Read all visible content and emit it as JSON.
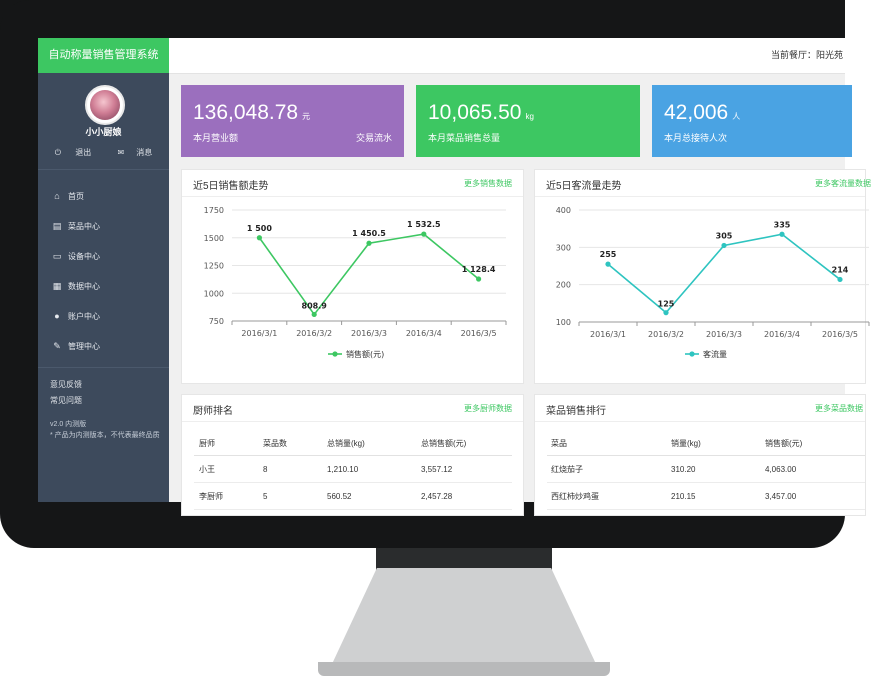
{
  "header": {
    "brand": "自动称量销售管理系统",
    "restaurant": "当前餐厅：阳光苑"
  },
  "sidebar": {
    "username": "小小厨娘",
    "logout": "退出",
    "messages": "消息",
    "nav": [
      {
        "label": "首页",
        "icon": "home-icon"
      },
      {
        "label": "菜品中心",
        "icon": "document-icon"
      },
      {
        "label": "设备中心",
        "icon": "monitor-icon"
      },
      {
        "label": "数据中心",
        "icon": "database-icon"
      },
      {
        "label": "账户中心",
        "icon": "users-icon"
      },
      {
        "label": "管理中心",
        "icon": "wrench-icon"
      }
    ],
    "links": [
      "意见反馈",
      "常见问题"
    ],
    "version": "v2.0 内测版",
    "note": "* 产品为内测版本，不代表最终品质"
  },
  "stats": [
    {
      "value": "136,048.78",
      "unit": "元",
      "label": "本月营业额",
      "link": "交易流水",
      "color": "#9b6fbe"
    },
    {
      "value": "10,065.50",
      "unit": "kg",
      "label": "本月菜品销售总量",
      "color": "#3dc762"
    },
    {
      "value": "42,006",
      "unit": "人",
      "label": "本月总接待人次",
      "color": "#4aa3e3"
    }
  ],
  "sales_panel": {
    "title": "近5日销售额走势",
    "more": "更多销售数据"
  },
  "traffic_panel": {
    "title": "近5日客流量走势",
    "more": "更多客流量数据"
  },
  "chef_panel": {
    "title": "厨师排名",
    "more": "更多厨师数据",
    "columns": [
      "厨师",
      "菜品数",
      "总销量(kg)",
      "总销售额(元)"
    ],
    "rows": [
      [
        "小王",
        "8",
        "1,210.10",
        "3,557.12"
      ],
      [
        "李厨师",
        "5",
        "560.52",
        "2,457.28"
      ]
    ]
  },
  "dish_panel": {
    "title": "菜品销售排行",
    "more": "更多菜品数据",
    "columns": [
      "菜品",
      "销量(kg)",
      "销售额(元)"
    ],
    "rows": [
      [
        "红烧茄子",
        "310.20",
        "4,063.00"
      ],
      [
        "西红柿炒鸡蛋",
        "210.15",
        "3,457.00"
      ]
    ]
  },
  "colors": {
    "accent": "#3dc762",
    "sidebar": "#3d4a5c",
    "teal": "#2ec4c0"
  },
  "chart_data": [
    {
      "type": "line",
      "x": [
        "2016/3/1",
        "2016/3/2",
        "2016/3/3",
        "2016/3/4",
        "2016/3/5"
      ],
      "series": [
        {
          "name": "销售额(元)",
          "values": [
            1500,
            808.9,
            1450.5,
            1532.5,
            1128.4
          ],
          "labels": [
            "1 500",
            "808.9",
            "1 450.5",
            "1 532.5",
            "1 128.4"
          ],
          "color": "#3dc762"
        }
      ],
      "yticks": [
        "750",
        "1000",
        "1250",
        "1500",
        "1750"
      ],
      "ylim": [
        750,
        1750
      ],
      "legend": "bottom"
    },
    {
      "type": "line",
      "x": [
        "2016/3/1",
        "2016/3/2",
        "2016/3/3",
        "2016/3/4",
        "2016/3/5"
      ],
      "series": [
        {
          "name": "客流量",
          "values": [
            255,
            125,
            305,
            335,
            214
          ],
          "labels": [
            "255",
            "125",
            "305",
            "335",
            "214"
          ],
          "color": "#2ec4c0"
        }
      ],
      "yticks": [
        "100",
        "200",
        "300",
        "400"
      ],
      "ylim": [
        100,
        400
      ],
      "legend": "bottom"
    }
  ]
}
